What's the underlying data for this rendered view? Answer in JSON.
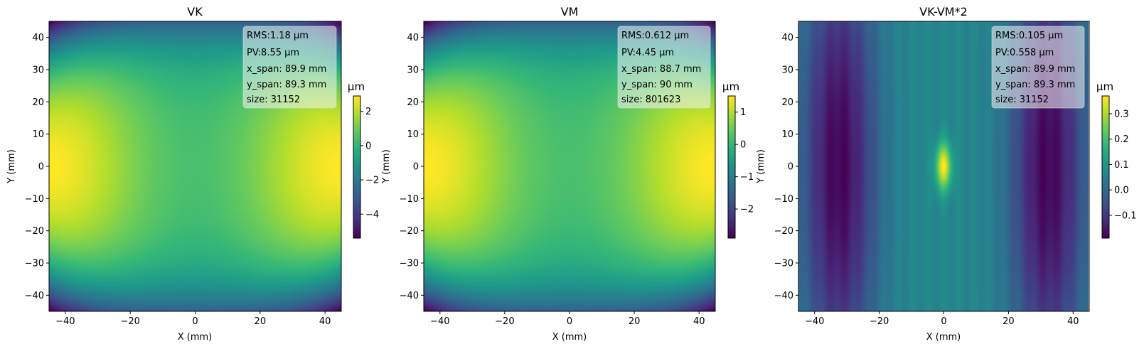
{
  "chart_data": [
    {
      "type": "heatmap",
      "title": "VK",
      "xlabel": "X (mm)",
      "ylabel": "Y (mm)",
      "xlim": [
        -45,
        45
      ],
      "ylim": [
        -45,
        45
      ],
      "xticks": [
        "−40",
        "−20",
        "0",
        "20",
        "40"
      ],
      "yticks": [
        "40",
        "30",
        "20",
        "10",
        "0",
        "−10",
        "−20",
        "−30",
        "−40"
      ],
      "colorbar": {
        "label": "μm",
        "range": [
          -5.4,
          2.9
        ],
        "ticks": [
          "2",
          "0",
          "−2",
          "−4"
        ],
        "tick_values": [
          2,
          0,
          -2,
          -4
        ]
      },
      "annotation": [
        "RMS:1.18 μm",
        "PV:8.55 μm",
        "x_span: 89.9 mm",
        "y_span: 89.3 mm",
        "size: 31152"
      ],
      "colormap": "viridis",
      "pattern": "saddle_x2_minus_y2"
    },
    {
      "type": "heatmap",
      "title": "VM",
      "xlabel": "X (mm)",
      "ylabel": "Y (mm)",
      "xlim": [
        -45,
        45
      ],
      "ylim": [
        -45,
        45
      ],
      "xticks": [
        "−40",
        "−20",
        "0",
        "20",
        "40"
      ],
      "yticks": [
        "40",
        "30",
        "20",
        "10",
        "0",
        "−10",
        "−20",
        "−30",
        "−40"
      ],
      "colorbar": {
        "label": "μm",
        "range": [
          -2.9,
          1.5
        ],
        "ticks": [
          "1",
          "0",
          "−1",
          "−2"
        ],
        "tick_values": [
          1,
          0,
          -1,
          -2
        ]
      },
      "annotation": [
        "RMS:0.612 μm",
        "PV:4.45 μm",
        "x_span: 88.7 mm",
        "y_span: 90 mm",
        "size: 801623"
      ],
      "colormap": "viridis",
      "pattern": "saddle_x2_minus_y2"
    },
    {
      "type": "heatmap",
      "title": "VK-VM*2",
      "xlabel": "X (mm)",
      "ylabel": "Y (mm)",
      "xlim": [
        -45,
        45
      ],
      "ylim": [
        -45,
        45
      ],
      "xticks": [
        "−40",
        "−20",
        "0",
        "20",
        "40"
      ],
      "yticks": [
        "40",
        "30",
        "20",
        "10",
        "0",
        "−10",
        "−20",
        "−30",
        "−40"
      ],
      "colorbar": {
        "label": "μm",
        "range": [
          -0.19,
          0.37
        ],
        "ticks": [
          "0.3",
          "0.2",
          "0.1",
          "0.0",
          "−0.1"
        ],
        "tick_values": [
          0.3,
          0.2,
          0.1,
          0.0,
          -0.1
        ]
      },
      "annotation": [
        "RMS:0.105 μm",
        "PV:0.558 μm",
        "x_span: 89.9 mm",
        "y_span: 89.3 mm",
        "size: 31152"
      ],
      "colormap": "viridis",
      "pattern": "double_trough_center_peak"
    }
  ]
}
